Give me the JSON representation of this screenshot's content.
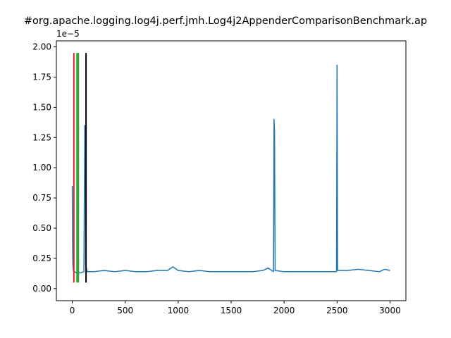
{
  "chart_data": {
    "type": "line",
    "title": "#org.apache.logging.log4j.perf.jmh.Log4j2AppenderComparisonBenchmark.ap",
    "xlabel": "",
    "ylabel": "",
    "y_offset_label": "1e−5",
    "xlim": [
      -150,
      3150
    ],
    "ylim": [
      -0.1,
      2.05
    ],
    "x_ticks": [
      0,
      500,
      1000,
      1500,
      2000,
      2500,
      3000
    ],
    "y_ticks": [
      0.0,
      0.25,
      0.5,
      0.75,
      1.0,
      1.25,
      1.5,
      1.75,
      2.0
    ],
    "x_tick_labels": [
      "0",
      "500",
      "1000",
      "1500",
      "2000",
      "2500",
      "3000"
    ],
    "y_tick_labels": [
      "0.00",
      "0.25",
      "0.50",
      "0.75",
      "1.00",
      "1.25",
      "1.50",
      "1.75",
      "2.00"
    ],
    "grid": false,
    "series": [
      {
        "color": "#1f77b4",
        "points": [
          [
            0,
            0.85
          ],
          [
            3,
            0.35
          ],
          [
            6,
            0.2
          ],
          [
            10,
            0.15
          ],
          [
            20,
            0.14
          ],
          [
            40,
            0.13
          ],
          [
            80,
            0.13
          ],
          [
            110,
            0.14
          ],
          [
            118,
            1.35
          ],
          [
            122,
            1.35
          ],
          [
            126,
            0.2
          ],
          [
            140,
            0.14
          ],
          [
            200,
            0.14
          ],
          [
            300,
            0.15
          ],
          [
            400,
            0.14
          ],
          [
            500,
            0.15
          ],
          [
            600,
            0.14
          ],
          [
            700,
            0.14
          ],
          [
            800,
            0.15
          ],
          [
            900,
            0.15
          ],
          [
            950,
            0.18
          ],
          [
            1000,
            0.15
          ],
          [
            1100,
            0.14
          ],
          [
            1200,
            0.15
          ],
          [
            1300,
            0.14
          ],
          [
            1400,
            0.14
          ],
          [
            1500,
            0.14
          ],
          [
            1600,
            0.14
          ],
          [
            1700,
            0.14
          ],
          [
            1800,
            0.15
          ],
          [
            1850,
            0.17
          ],
          [
            1900,
            0.14
          ],
          [
            1905,
            1.4
          ],
          [
            1910,
            1.3
          ],
          [
            1915,
            0.15
          ],
          [
            2000,
            0.14
          ],
          [
            2100,
            0.14
          ],
          [
            2200,
            0.14
          ],
          [
            2300,
            0.14
          ],
          [
            2400,
            0.14
          ],
          [
            2495,
            0.14
          ],
          [
            2500,
            1.85
          ],
          [
            2505,
            0.15
          ],
          [
            2600,
            0.15
          ],
          [
            2700,
            0.16
          ],
          [
            2800,
            0.15
          ],
          [
            2900,
            0.14
          ],
          [
            2950,
            0.16
          ],
          [
            3000,
            0.15
          ]
        ]
      }
    ],
    "vlines": [
      {
        "x": 15,
        "ymin": 0.05,
        "ymax": 1.95,
        "color": "#d62728"
      },
      {
        "x": 45,
        "ymin": 0.05,
        "ymax": 1.95,
        "color": "#2ca02c"
      },
      {
        "x": 58,
        "ymin": 0.05,
        "ymax": 1.95,
        "color": "#2ca02c"
      },
      {
        "x": 130,
        "ymin": 0.05,
        "ymax": 1.95,
        "color": "#000000"
      }
    ]
  }
}
